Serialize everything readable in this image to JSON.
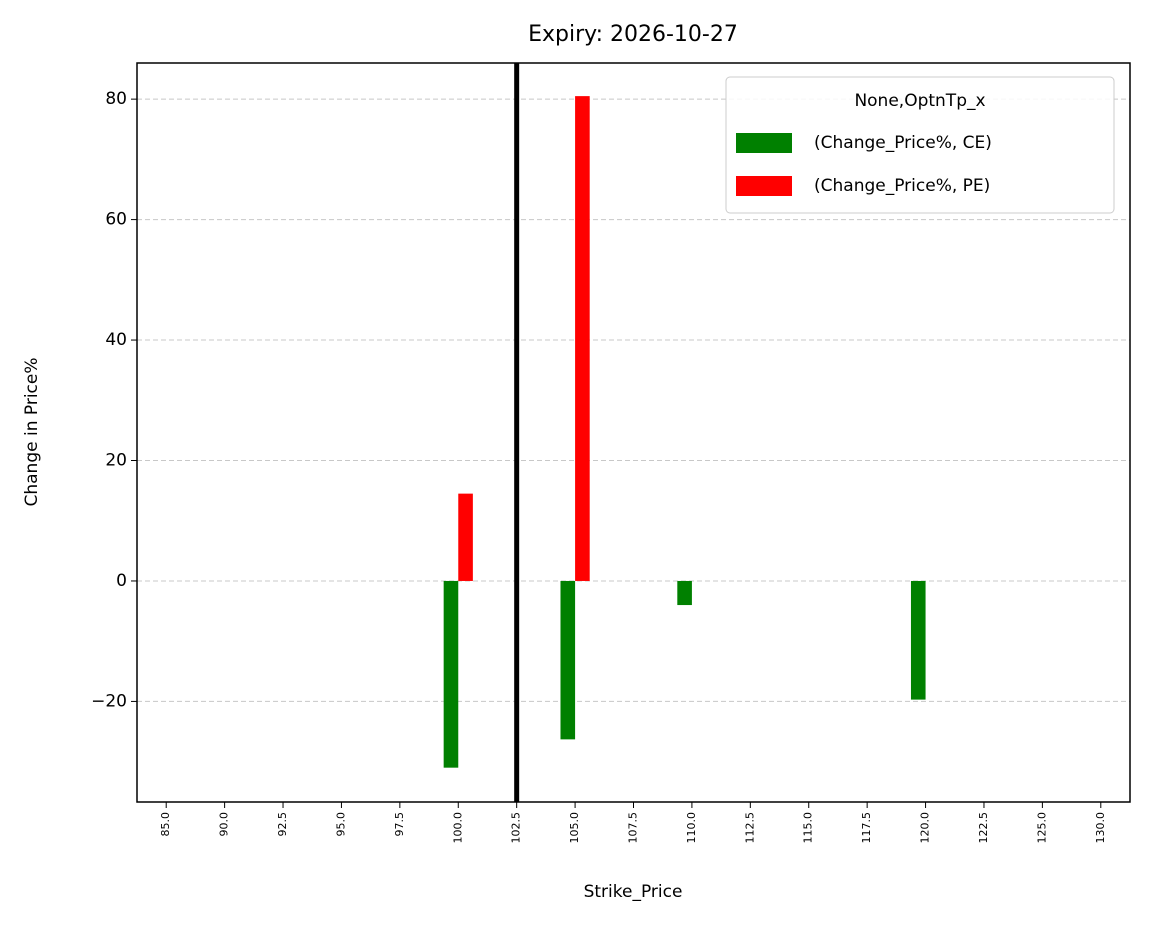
{
  "chart_data": {
    "type": "bar",
    "title": "Expiry: 2026-10-27",
    "xlabel": "Strike_Price",
    "ylabel": "Change in Price%",
    "categories": [
      "85.0",
      "90.0",
      "92.5",
      "95.0",
      "97.5",
      "100.0",
      "102.5",
      "105.0",
      "107.5",
      "110.0",
      "112.5",
      "115.0",
      "117.5",
      "120.0",
      "122.5",
      "125.0",
      "130.0"
    ],
    "series": [
      {
        "name": "(Change_Price%, CE)",
        "color": "#008000",
        "values": [
          null,
          null,
          null,
          null,
          null,
          -31,
          null,
          -26.3,
          null,
          -4,
          null,
          null,
          null,
          -19.7,
          null,
          null,
          null
        ]
      },
      {
        "name": "(Change_Price%, PE)",
        "color": "#ff0000",
        "values": [
          null,
          null,
          null,
          null,
          null,
          14.5,
          null,
          80.5,
          null,
          null,
          null,
          null,
          null,
          null,
          null,
          null,
          null
        ]
      }
    ],
    "legend_title": "None,OptnTp_x",
    "legend": "upper right",
    "vline": {
      "category": "102.5",
      "color": "#000000"
    },
    "ylim": [
      -36.7,
      86.0
    ],
    "yticks": [
      {
        "value": -20,
        "label": "−20"
      },
      0,
      20,
      40,
      60,
      80
    ],
    "grid": true
  }
}
